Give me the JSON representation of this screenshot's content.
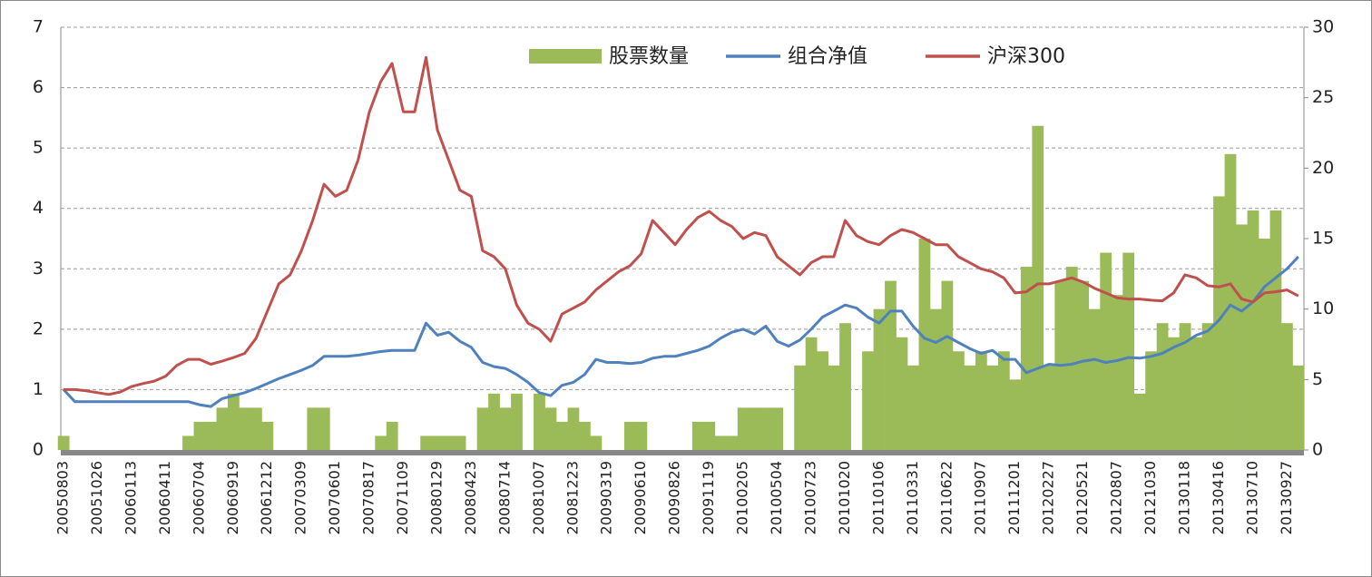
{
  "chart_data": {
    "type": "bar-line",
    "categories": [
      "20050803",
      null,
      null,
      "20051026",
      null,
      null,
      "20060113",
      null,
      null,
      "20060411",
      null,
      null,
      "20060704",
      null,
      null,
      "20060919",
      null,
      null,
      "20061212",
      null,
      null,
      "20070309",
      null,
      null,
      "20070601",
      null,
      null,
      "20070817",
      null,
      null,
      "20071109",
      null,
      null,
      "20080129",
      null,
      null,
      "20080423",
      null,
      null,
      "20080714",
      null,
      null,
      "20081007",
      null,
      null,
      "20081223",
      null,
      null,
      "20090319",
      null,
      null,
      "20090610",
      null,
      null,
      "20090826",
      null,
      null,
      "20091119",
      null,
      null,
      "20100205",
      null,
      null,
      "20100504",
      null,
      null,
      "20100723",
      null,
      null,
      "20101020",
      null,
      null,
      "20110106",
      null,
      null,
      "20110331",
      null,
      null,
      "20110622",
      null,
      null,
      "20110907",
      null,
      null,
      "20111201",
      null,
      null,
      "20120227",
      null,
      null,
      "20120521",
      null,
      null,
      "20120807",
      null,
      null,
      "20121030",
      null,
      null,
      "20130118",
      null,
      null,
      "20130416",
      null,
      null,
      "20130710",
      null,
      null,
      "20130927",
      null
    ],
    "series": [
      {
        "name": "股票数量",
        "type": "bar",
        "axis": "y2",
        "color": "#9bbb59",
        "values": [
          1,
          0,
          0,
          0,
          0,
          0,
          0,
          0,
          0,
          0,
          0,
          1,
          2,
          2,
          3,
          4,
          3,
          3,
          2,
          0,
          0,
          0,
          3,
          3,
          0,
          0,
          0,
          0,
          1,
          2,
          0,
          0,
          1,
          1,
          1,
          1,
          0,
          3,
          4,
          3,
          4,
          0,
          4,
          3,
          2,
          3,
          2,
          1,
          0,
          0,
          2,
          2,
          0,
          0,
          0,
          0,
          2,
          2,
          1,
          1,
          3,
          3,
          3,
          3,
          0,
          6,
          8,
          7,
          6,
          9,
          0,
          7,
          10,
          12,
          8,
          6,
          15,
          10,
          12,
          7,
          6,
          7,
          6,
          7,
          5,
          13,
          23,
          6,
          12,
          13,
          12,
          10,
          14,
          11,
          14,
          4,
          7,
          9,
          8,
          9,
          8,
          9,
          18,
          21,
          16,
          17,
          15,
          17,
          9,
          6
        ]
      },
      {
        "name": "组合净值",
        "type": "line",
        "color": "#4f81bd",
        "values": [
          1.0,
          0.8,
          0.8,
          0.8,
          0.8,
          0.8,
          0.8,
          0.8,
          0.8,
          0.8,
          0.8,
          0.8,
          0.75,
          0.72,
          0.85,
          0.9,
          0.95,
          1.02,
          1.1,
          1.18,
          1.25,
          1.32,
          1.4,
          1.55,
          1.55,
          1.55,
          1.57,
          1.6,
          1.63,
          1.65,
          1.65,
          1.65,
          2.1,
          1.9,
          1.95,
          1.8,
          1.7,
          1.45,
          1.38,
          1.35,
          1.25,
          1.12,
          0.95,
          0.9,
          1.07,
          1.12,
          1.25,
          1.5,
          1.45,
          1.45,
          1.43,
          1.45,
          1.52,
          1.55,
          1.55,
          1.6,
          1.65,
          1.72,
          1.85,
          1.95,
          2.0,
          1.92,
          2.05,
          1.8,
          1.72,
          1.82,
          2.0,
          2.2,
          2.3,
          2.4,
          2.35,
          2.2,
          2.1,
          2.3,
          2.3,
          2.05,
          1.85,
          1.78,
          1.88,
          1.78,
          1.68,
          1.6,
          1.65,
          1.5,
          1.5,
          1.28,
          1.35,
          1.42,
          1.4,
          1.42,
          1.47,
          1.5,
          1.45,
          1.48,
          1.53,
          1.52,
          1.55,
          1.6,
          1.7,
          1.78,
          1.9,
          1.97,
          2.15,
          2.4,
          2.3,
          2.45,
          2.7,
          2.85,
          3.0,
          3.2
        ]
      },
      {
        "name": "沪深300",
        "type": "line",
        "color": "#c0504d",
        "values": [
          1.0,
          1.0,
          0.98,
          0.95,
          0.92,
          0.96,
          1.05,
          1.1,
          1.14,
          1.22,
          1.4,
          1.5,
          1.5,
          1.42,
          1.47,
          1.53,
          1.6,
          1.85,
          2.3,
          2.75,
          2.9,
          3.3,
          3.8,
          4.4,
          4.2,
          4.3,
          4.8,
          5.6,
          6.1,
          6.4,
          5.6,
          5.6,
          6.5,
          5.3,
          4.8,
          4.3,
          4.2,
          3.3,
          3.2,
          3.0,
          2.4,
          2.1,
          2.0,
          1.8,
          2.25,
          2.35,
          2.45,
          2.65,
          2.8,
          2.95,
          3.05,
          3.25,
          3.8,
          3.6,
          3.4,
          3.65,
          3.85,
          3.95,
          3.8,
          3.7,
          3.5,
          3.6,
          3.55,
          3.2,
          3.05,
          2.9,
          3.1,
          3.2,
          3.2,
          3.8,
          3.55,
          3.45,
          3.4,
          3.55,
          3.65,
          3.6,
          3.5,
          3.4,
          3.4,
          3.2,
          3.1,
          3.0,
          2.95,
          2.85,
          2.6,
          2.62,
          2.75,
          2.75,
          2.8,
          2.85,
          2.78,
          2.68,
          2.6,
          2.52,
          2.5,
          2.5,
          2.48,
          2.47,
          2.6,
          2.9,
          2.85,
          2.72,
          2.7,
          2.75,
          2.5,
          2.45,
          2.6,
          2.62,
          2.65,
          2.55
        ]
      }
    ],
    "ylim": [
      0,
      7
    ],
    "yticks": [
      0,
      1,
      2,
      3,
      4,
      5,
      6,
      7
    ],
    "y2lim": [
      0,
      30
    ],
    "y2ticks": [
      0,
      5,
      10,
      15,
      20,
      25,
      30
    ],
    "grid": true,
    "legend": "top"
  }
}
